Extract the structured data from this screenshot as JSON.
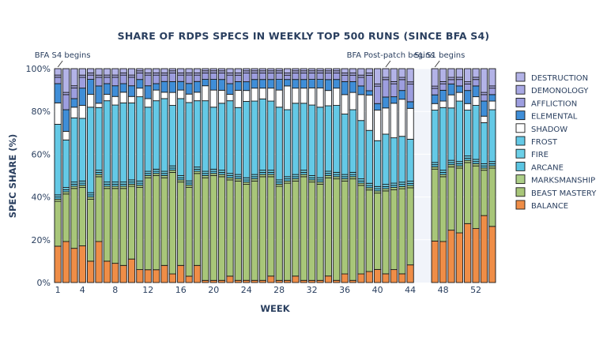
{
  "chart_data": {
    "type": "bar",
    "stacked": true,
    "title": "SHARE OF RDPS SPECS IN WEEKLY TOP 500 RUNS (SINCE BFA S4)",
    "xlabel": "WEEK",
    "ylabel": "SPEC SHARE (%)",
    "xlim": [
      0.5,
      54.5
    ],
    "ylim": [
      0,
      100
    ],
    "weeks": [
      1,
      2,
      3,
      4,
      5,
      6,
      7,
      8,
      9,
      10,
      11,
      12,
      13,
      14,
      15,
      16,
      17,
      18,
      19,
      20,
      21,
      22,
      23,
      24,
      25,
      26,
      27,
      28,
      29,
      30,
      31,
      32,
      33,
      34,
      35,
      36,
      37,
      38,
      39,
      40,
      41,
      42,
      43,
      44,
      47,
      48,
      49,
      50,
      51,
      52,
      53,
      54
    ],
    "x_ticks": [
      1,
      4,
      8,
      12,
      16,
      20,
      24,
      28,
      32,
      36,
      40,
      44,
      48,
      52
    ],
    "y_ticks": [
      0,
      20,
      40,
      60,
      80,
      100
    ],
    "y_tick_labels": [
      "0%",
      "20%",
      "40%",
      "60%",
      "80%",
      "100%"
    ],
    "shaded_region": [
      44.5,
      46.5
    ],
    "annotations": [
      {
        "text": "BFA S4 begins",
        "x": 1
      },
      {
        "text": "BFA Post-patch begins",
        "x": 41
      },
      {
        "text": "SL S1 begins",
        "x": 47
      }
    ],
    "legend_position": "right",
    "series": [
      {
        "name": "BALANCE",
        "color": "#ef8d47",
        "values": [
          17,
          19,
          16,
          17,
          10,
          19,
          10,
          9,
          8,
          11,
          6,
          6,
          6,
          8,
          4,
          8,
          3,
          8,
          1,
          1,
          1,
          3,
          1,
          1,
          1,
          1,
          3,
          1,
          1,
          3,
          1,
          1,
          1,
          3,
          1,
          4,
          1,
          4,
          5,
          6,
          4,
          6,
          4,
          8,
          19,
          19,
          24,
          23,
          27,
          25,
          31,
          26
        ]
      },
      {
        "name": "BEAST MASTERY",
        "color": "#a8c679",
        "values": [
          21,
          22,
          28,
          27,
          29,
          30,
          34,
          35,
          36,
          34,
          38,
          43,
          44,
          41,
          47,
          39,
          42,
          43,
          48,
          49,
          48,
          45,
          46,
          44,
          46,
          48,
          46,
          44,
          45,
          44,
          48,
          46,
          45,
          45,
          47,
          43,
          47,
          41,
          37,
          35,
          38,
          37,
          39,
          35,
          33,
          30,
          29,
          30,
          28,
          29,
          21,
          27
        ]
      },
      {
        "name": "MARKSMANSHIP",
        "color": "#adcf88",
        "values": [
          1,
          1,
          1,
          1,
          1,
          1,
          1,
          1,
          1,
          1,
          1,
          1,
          1,
          1,
          1,
          1,
          1,
          1,
          1,
          1,
          1,
          1,
          1,
          1,
          1,
          1,
          1,
          1,
          1,
          1,
          1,
          1,
          1,
          1,
          1,
          1,
          1,
          1,
          1,
          1,
          1,
          1,
          1,
          1,
          1,
          1,
          1,
          1,
          1,
          1,
          1,
          1
        ]
      },
      {
        "name": "ARCANE",
        "color": "#5bc5e2",
        "values": [
          1,
          1,
          1,
          1,
          1,
          1,
          1,
          1,
          1,
          1,
          1,
          1,
          1,
          1,
          1,
          1,
          1,
          1,
          1,
          1,
          1,
          1,
          1,
          1,
          1,
          1,
          1,
          1,
          1,
          1,
          1,
          1,
          1,
          1,
          1,
          1,
          1,
          1,
          1,
          1,
          1,
          1,
          1,
          1,
          1,
          1,
          1,
          1,
          1,
          1,
          1,
          1
        ]
      },
      {
        "name": "FIRE",
        "color": "#6cd0e8",
        "values": [
          1,
          1,
          1,
          1,
          1,
          1,
          1,
          1,
          1,
          1,
          1,
          1,
          1,
          1,
          1,
          1,
          1,
          1,
          1,
          1,
          1,
          1,
          1,
          1,
          1,
          1,
          1,
          1,
          1,
          1,
          1,
          1,
          1,
          1,
          1,
          1,
          1,
          1,
          1,
          1,
          1,
          1,
          1,
          1,
          1,
          1,
          1,
          1,
          1,
          1,
          1,
          1
        ]
      },
      {
        "name": "FROST",
        "color": "#64c9e6",
        "values": [
          33,
          22,
          30,
          29,
          40,
          29,
          38,
          36,
          37,
          36,
          39,
          30,
          32,
          34,
          28,
          36,
          37,
          31,
          33,
          29,
          31,
          34,
          31,
          35,
          34,
          33,
          32,
          34,
          31,
          33,
          31,
          33,
          33,
          30,
          31,
          28,
          29,
          27,
          24,
          21,
          23,
          21,
          21,
          19,
          24,
          29,
          24,
          28,
          21,
          25,
          19,
          24
        ]
      },
      {
        "name": "SHADOW",
        "color": "#ffffff",
        "values": [
          10,
          4,
          5,
          6,
          6,
          2,
          3,
          4,
          5,
          3,
          4,
          4,
          5,
          3,
          6,
          4,
          4,
          4,
          7,
          8,
          6,
          3,
          8,
          5,
          6,
          5,
          6,
          8,
          11,
          7,
          7,
          8,
          9,
          7,
          8,
          9,
          8,
          12,
          16,
          14,
          12,
          16,
          17,
          14,
          3,
          3,
          6,
          4,
          3,
          4,
          3,
          4
        ]
      },
      {
        "name": "ELEMENTAL",
        "color": "#3f8ed8",
        "values": [
          9,
          10,
          4,
          8,
          7,
          8,
          5,
          5,
          4,
          5,
          4,
          6,
          3,
          5,
          5,
          4,
          5,
          5,
          3,
          5,
          5,
          5,
          4,
          4,
          4,
          4,
          4,
          5,
          3,
          4,
          4,
          4,
          4,
          5,
          4,
          6,
          5,
          4,
          2,
          3,
          5,
          3,
          4,
          3,
          4,
          5,
          5,
          3,
          6,
          5,
          7,
          3
        ]
      },
      {
        "name": "AFFLICTION",
        "color": "#9d9edf",
        "values": [
          3,
          7,
          5,
          5,
          2,
          4,
          3,
          4,
          4,
          4,
          3,
          5,
          4,
          3,
          4,
          3,
          4,
          3,
          3,
          3,
          3,
          4,
          3,
          4,
          3,
          3,
          3,
          3,
          2,
          3,
          3,
          3,
          3,
          3,
          3,
          3,
          3,
          4,
          7,
          8,
          8,
          6,
          5,
          8,
          3,
          3,
          2,
          3,
          3,
          3,
          3,
          3
        ]
      },
      {
        "name": "DEMONOLOGY",
        "color": "#a9a9e4",
        "values": [
          1,
          1,
          1,
          1,
          1,
          1,
          1,
          1,
          1,
          1,
          1,
          1,
          1,
          1,
          1,
          1,
          1,
          1,
          1,
          1,
          1,
          1,
          1,
          1,
          1,
          1,
          1,
          1,
          1,
          1,
          1,
          1,
          1,
          1,
          1,
          1,
          1,
          1,
          1,
          1,
          1,
          1,
          1,
          1,
          1,
          1,
          1,
          1,
          1,
          1,
          1,
          1
        ]
      },
      {
        "name": "DESTRUCTION",
        "color": "#b3b3e7",
        "values": [
          3,
          11,
          8,
          3,
          2,
          3,
          3,
          3,
          2,
          3,
          1,
          2,
          2,
          2,
          1,
          2,
          2,
          2,
          1,
          1,
          1,
          2,
          2,
          1,
          1,
          1,
          1,
          1,
          2,
          1,
          1,
          1,
          1,
          1,
          1,
          2,
          2,
          3,
          2,
          7,
          4,
          6,
          4,
          6,
          8,
          6,
          4,
          4,
          6,
          4,
          11,
          8
        ]
      }
    ]
  }
}
